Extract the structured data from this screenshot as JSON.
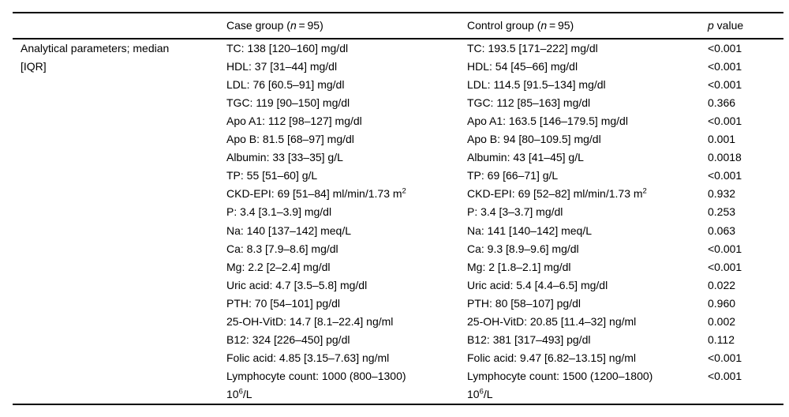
{
  "table": {
    "header": {
      "case_pre": "Case group (",
      "case_n": "n",
      "case_post": " = 95)",
      "control_pre": "Control group (",
      "control_n": "n",
      "control_post": " = 95)",
      "p_it": "p",
      "p_post": " value"
    },
    "label_line1": "Analytical parameters; median",
    "label_line2": "[IQR]",
    "rows": [
      {
        "case": "TC: 138 [120–160] mg/dl",
        "control": "TC: 193.5 [171–222] mg/dl",
        "p": "<0.001"
      },
      {
        "case": "HDL: 37 [31–44] mg/dl",
        "control": "HDL: 54 [45–66] mg/dl",
        "p": "<0.001"
      },
      {
        "case": "LDL: 76 [60.5–91] mg/dl",
        "control": "LDL: 114.5 [91.5–134] mg/dl",
        "p": "<0.001"
      },
      {
        "case": "TGC: 119 [90–150] mg/dl",
        "control": "TGC: 112 [85–163] mg/dl",
        "p": "0.366"
      },
      {
        "case": "Apo A1: 112 [98–127] mg/dl",
        "control": "Apo A1: 163.5 [146–179.5] mg/dl",
        "p": "<0.001"
      },
      {
        "case": "Apo B: 81.5 [68–97] mg/dl",
        "control": "Apo B: 94 [80–109.5] mg/dl",
        "p": "0.001"
      },
      {
        "case": "Albumin: 33 [33–35] g/L",
        "control": "Albumin: 43 [41–45] g/L",
        "p": "0.0018"
      },
      {
        "case": "TP: 55 [51–60] g/L",
        "control": "TP: 69 [66–71] g/L",
        "p": "<0.001"
      },
      {
        "case_main": "CKD-EPI: 69 [51–84] ml/min/1.73 m",
        "case_sup": "2",
        "control_main": "CKD-EPI: 69 [52–82] ml/min/1.73 m",
        "control_sup": "2",
        "p": "0.932"
      },
      {
        "case": "P: 3.4 [3.1–3.9] mg/dl",
        "control": "P: 3.4 [3–3.7] mg/dl",
        "p": "0.253"
      },
      {
        "case": "Na: 140 [137–142] meq/L",
        "control": "Na: 141 [140–142] meq/L",
        "p": "0.063"
      },
      {
        "case": "Ca: 8.3 [7.9–8.6] mg/dl",
        "control": "Ca: 9.3 [8.9–9.6] mg/dl",
        "p": "<0.001"
      },
      {
        "case": "Mg: 2.2 [2–2.4] mg/dl",
        "control": "Mg: 2 [1.8–2.1] mg/dl",
        "p": "<0.001"
      },
      {
        "case": "Uric acid: 4.7 [3.5–5.8] mg/dl",
        "control": "Uric acid: 5.4 [4.4–6.5] mg/dl",
        "p": "0.022"
      },
      {
        "case": "PTH: 70 [54–101] pg/dl",
        "control": "PTH: 80 [58–107] pg/dl",
        "p": "0.960"
      },
      {
        "case": "25-OH-VitD: 14.7 [8.1–22.4] ng/ml",
        "control": "25-OH-VitD: 20.85 [11.4–32] ng/ml",
        "p": "0.002"
      },
      {
        "case": "B12: 324 [226–450] pg/dl",
        "control": "B12: 381 [317–493] pg/dl",
        "p": "0.112"
      },
      {
        "case": "Folic acid: 4.85 [3.15–7.63] ng/ml",
        "control": "Folic acid: 9.47 [6.82–13.15] ng/ml",
        "p": "<0.001"
      },
      {
        "case_line1": "Lymphocyte count: 1000 (800–1300)",
        "case_l2a": "10",
        "case_l2sup": "6",
        "case_l2b": "/L",
        "control_line1": "Lymphocyte count: 1500 (1200–1800)",
        "control_l2a": "10",
        "control_l2sup": "6",
        "control_l2b": "/L",
        "p": "<0.001"
      }
    ]
  }
}
